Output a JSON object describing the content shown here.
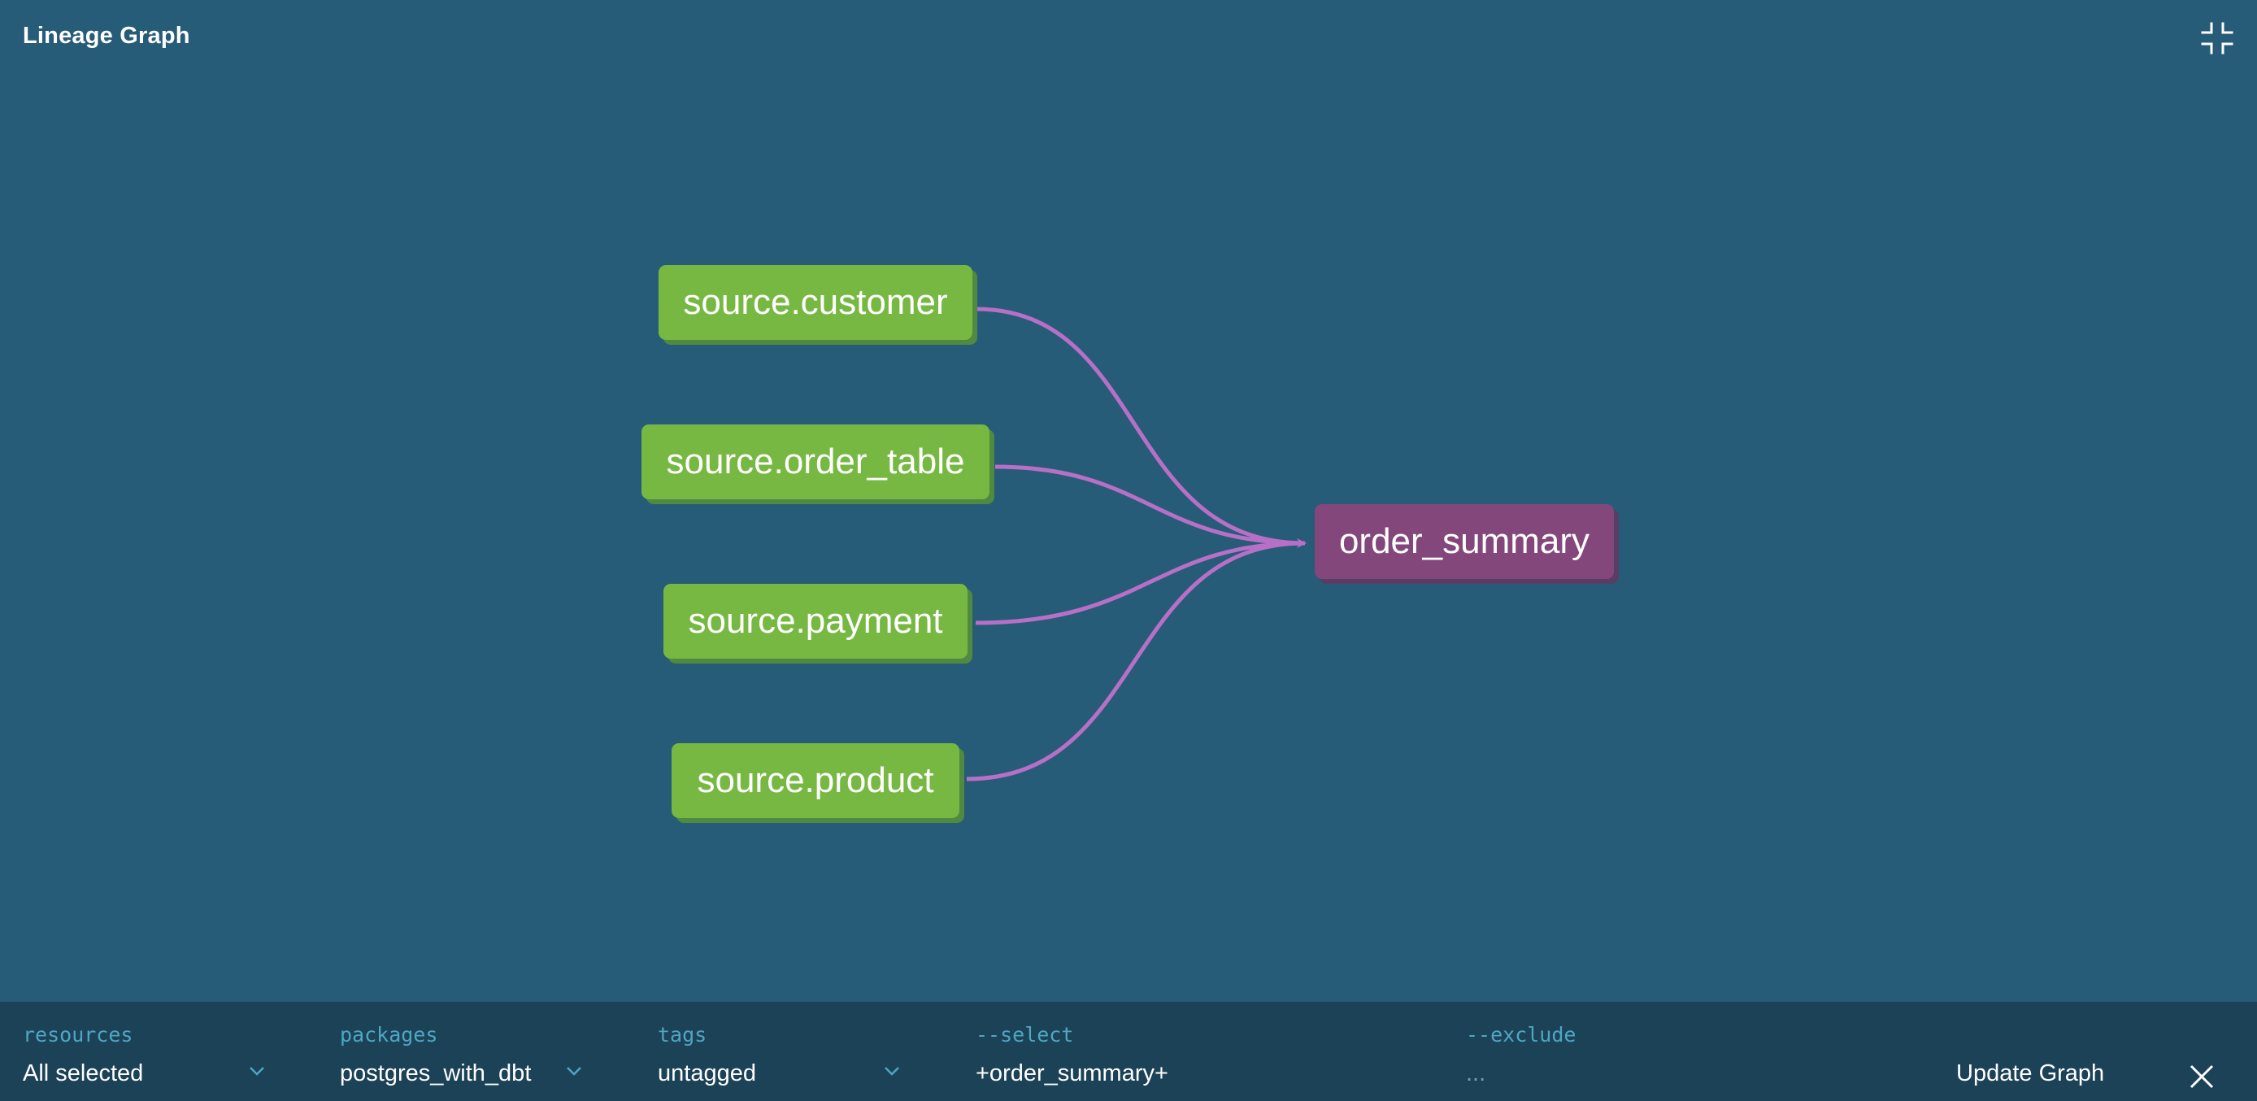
{
  "window": {
    "title": "Lineage Graph"
  },
  "icons": {
    "collapse": "collapse-icon",
    "chevron": "chevron-down-icon",
    "close": "close-icon"
  },
  "colors": {
    "background": "#275c78",
    "bottom_bar": "#1c4257",
    "source_node": "#77b843",
    "model_node": "#83477c",
    "edge": "#b86fc6",
    "label_accent": "#4fa6c3"
  },
  "graph": {
    "sources": [
      {
        "label": "source.customer"
      },
      {
        "label": "source.order_table"
      },
      {
        "label": "source.payment"
      },
      {
        "label": "source.product"
      }
    ],
    "target": {
      "label": "order_summary"
    }
  },
  "filters": {
    "resources": {
      "label": "resources",
      "value": "All selected"
    },
    "packages": {
      "label": "packages",
      "value": "postgres_with_dbt"
    },
    "tags": {
      "label": "tags",
      "value": "untagged"
    },
    "select": {
      "label": "--select",
      "value": "+order_summary+"
    },
    "exclude": {
      "label": "--exclude",
      "value": "..."
    }
  },
  "actions": {
    "update_label": "Update Graph"
  }
}
